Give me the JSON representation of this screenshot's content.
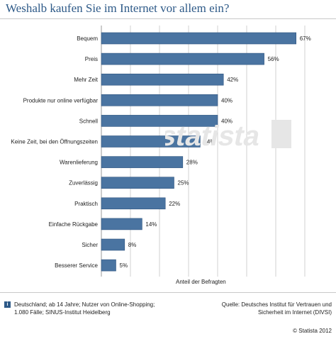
{
  "title": "Weshalb kaufen Sie im Internet vor allem ein?",
  "axis_label": "Anteil der Befragten",
  "footer": {
    "info_icon_glyph": "i",
    "left_text": "Deutschland; ab 14 Jahre; Nutzer von Online-Shopping; 1.080 Fälle; SINUS-Institut Heidelberg",
    "right_text": "Quelle: Deutsches Institut für Vertrauen und Sicherheit im Internet (DIVSI)",
    "copyright": "© Statista 2012"
  },
  "watermark": "statista",
  "colors": {
    "bar": "#4a74a1",
    "bar_edge": "#2f5580",
    "grid": "#d0d0d0",
    "title": "#2e5a88"
  },
  "chart_data": {
    "type": "bar",
    "orientation": "horizontal",
    "categories": [
      "Bequem",
      "Preis",
      "Mehr Zeit",
      "Produkte nur online verfügbar",
      "Schnell",
      "Keine Zeit, bei den Öffnungszeiten",
      "Warenlieferung",
      "Zuverlässig",
      "Praktisch",
      "Einfache Rückgabe",
      "Sicher",
      "Besserer Service"
    ],
    "values": [
      67,
      56,
      42,
      40,
      40,
      34,
      28,
      25,
      22,
      14,
      8,
      5
    ],
    "value_labels": [
      "67%",
      "56%",
      "42%",
      "40%",
      "40%",
      "34%",
      "28%",
      "25%",
      "22%",
      "14%",
      "8%",
      "5%"
    ],
    "xlabel": "Anteil der Befragten",
    "xlim": [
      0,
      70
    ],
    "grid": true
  }
}
